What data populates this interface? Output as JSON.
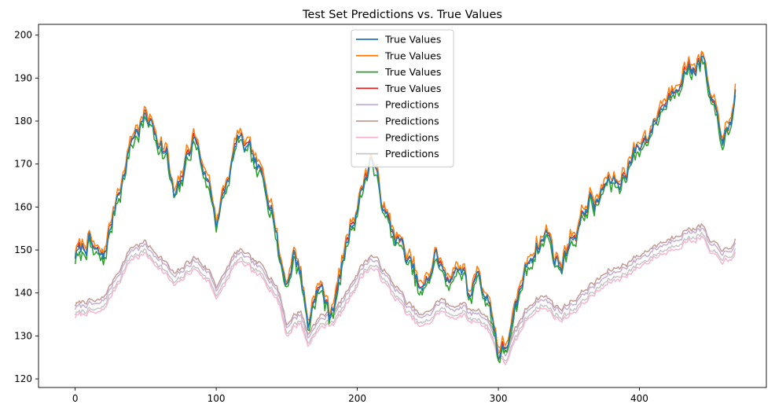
{
  "chart_data": {
    "type": "line",
    "title": "Test Set Predictions vs. True Values",
    "xlabel": "",
    "ylabel": "",
    "xlim": [
      -26,
      490
    ],
    "ylim": [
      118,
      202.5
    ],
    "xticks": [
      0,
      100,
      200,
      300,
      400
    ],
    "yticks": [
      120,
      130,
      140,
      150,
      160,
      170,
      180,
      190,
      200
    ],
    "grid": false,
    "legend_position": "top-center",
    "anchors_x": [
      0,
      5,
      10,
      15,
      20,
      25,
      30,
      35,
      40,
      45,
      50,
      55,
      60,
      65,
      70,
      75,
      80,
      85,
      90,
      95,
      100,
      105,
      110,
      115,
      120,
      125,
      130,
      135,
      140,
      145,
      150,
      155,
      160,
      165,
      170,
      175,
      180,
      185,
      190,
      195,
      200,
      205,
      210,
      215,
      220,
      225,
      230,
      235,
      240,
      245,
      250,
      255,
      260,
      265,
      270,
      275,
      280,
      285,
      290,
      295,
      300,
      305,
      310,
      315,
      320,
      325,
      330,
      335,
      340,
      345,
      350,
      355,
      360,
      365,
      370,
      375,
      380,
      385,
      390,
      395,
      400,
      405,
      410,
      415,
      420,
      425,
      430,
      435,
      440,
      445,
      450,
      455,
      460,
      465,
      468
    ],
    "series": [
      {
        "name": "True Values",
        "color": "#1f77b4",
        "offset": 0,
        "noise": 0.5,
        "seed": 11,
        "values": [
          149,
          150,
          152,
          149,
          148,
          155,
          163,
          168,
          176,
          178,
          181,
          179,
          175,
          172,
          162,
          165,
          173,
          176,
          170,
          165,
          157,
          162,
          168,
          176,
          174,
          172,
          168,
          165,
          160,
          148,
          142,
          149,
          145,
          132,
          140,
          141,
          135,
          139,
          148,
          155,
          160,
          166,
          172,
          165,
          158,
          154,
          152,
          148,
          145,
          140,
          142,
          149,
          146,
          141,
          147,
          145,
          138,
          146,
          140,
          136,
          126,
          127,
          132,
          140,
          146,
          150,
          152,
          154,
          148,
          146,
          152,
          154,
          158,
          162,
          160,
          165,
          166,
          165,
          168,
          172,
          174,
          176,
          179,
          183,
          185,
          188,
          191,
          192,
          193,
          195,
          185,
          180,
          176,
          178,
          188
        ]
      },
      {
        "name": "True Values",
        "color": "#ff7f0e",
        "offset": 1.2,
        "noise": 0.7,
        "seed": 23,
        "values": [
          149,
          150,
          152,
          149,
          148,
          155,
          163,
          168,
          176,
          178,
          181,
          179,
          175,
          172,
          162,
          165,
          173,
          176,
          170,
          165,
          157,
          162,
          168,
          176,
          174,
          172,
          168,
          165,
          160,
          148,
          142,
          149,
          145,
          132,
          140,
          141,
          135,
          139,
          148,
          155,
          160,
          166,
          172,
          165,
          158,
          154,
          152,
          148,
          145,
          140,
          142,
          149,
          146,
          141,
          147,
          145,
          138,
          146,
          140,
          136,
          126,
          127,
          132,
          140,
          146,
          150,
          152,
          154,
          148,
          146,
          152,
          154,
          158,
          162,
          160,
          165,
          166,
          165,
          168,
          172,
          174,
          176,
          179,
          183,
          185,
          188,
          191,
          192,
          193,
          195,
          185,
          180,
          176,
          178,
          188
        ]
      },
      {
        "name": "True Values",
        "color": "#2ca02c",
        "offset": -1.0,
        "noise": 0.9,
        "seed": 37,
        "values": [
          149,
          150,
          152,
          149,
          148,
          155,
          163,
          168,
          176,
          178,
          181,
          179,
          175,
          172,
          162,
          165,
          173,
          176,
          170,
          165,
          157,
          162,
          168,
          176,
          174,
          172,
          168,
          165,
          160,
          148,
          142,
          149,
          145,
          132,
          140,
          141,
          135,
          139,
          148,
          155,
          160,
          166,
          172,
          165,
          158,
          154,
          152,
          148,
          145,
          140,
          142,
          149,
          146,
          141,
          147,
          145,
          138,
          146,
          140,
          136,
          126,
          127,
          132,
          140,
          146,
          150,
          152,
          154,
          148,
          146,
          152,
          154,
          158,
          162,
          160,
          165,
          166,
          165,
          168,
          172,
          174,
          176,
          179,
          183,
          185,
          188,
          191,
          192,
          193,
          195,
          185,
          180,
          176,
          178,
          188
        ]
      },
      {
        "name": "True Values",
        "color": "#d62728",
        "offset": 0.3,
        "noise": 0.6,
        "seed": 51,
        "values": [
          149,
          150,
          152,
          149,
          148,
          155,
          163,
          168,
          176,
          178,
          181,
          179,
          175,
          172,
          162,
          165,
          173,
          176,
          170,
          165,
          157,
          162,
          168,
          176,
          174,
          172,
          168,
          165,
          160,
          148,
          142,
          149,
          145,
          132,
          140,
          141,
          135,
          139,
          148,
          155,
          160,
          166,
          172,
          165,
          158,
          154,
          152,
          148,
          145,
          140,
          142,
          149,
          146,
          141,
          147,
          145,
          138,
          146,
          140,
          136,
          126,
          127,
          132,
          140,
          146,
          150,
          152,
          154,
          148,
          146,
          152,
          154,
          158,
          162,
          160,
          165,
          166,
          165,
          168,
          172,
          174,
          176,
          179,
          183,
          185,
          188,
          191,
          192,
          193,
          195,
          185,
          180,
          176,
          178,
          188
        ]
      },
      {
        "name": "Predictions",
        "color": "#c5b0d5",
        "offset": 1.0,
        "noise": 0.2,
        "seed": 61,
        "values": [
          135.5,
          136,
          136.5,
          136,
          137,
          140,
          143,
          146,
          149,
          149.5,
          150,
          148,
          147,
          145,
          142.5,
          143.5,
          145.5,
          146.5,
          145,
          143.5,
          140,
          142,
          145.5,
          148,
          147.5,
          146,
          145,
          143.5,
          141.5,
          138,
          131,
          133,
          134,
          128.5,
          131.5,
          133,
          133.5,
          134.5,
          137,
          140,
          143,
          145.5,
          147,
          145.5,
          143,
          140.5,
          139,
          136,
          134.5,
          133,
          133.5,
          135.5,
          137,
          135,
          135.5,
          136,
          134,
          134.5,
          133.5,
          131,
          126,
          124.5,
          128,
          131.5,
          134.5,
          136.5,
          137.5,
          137,
          135.5,
          134.5,
          136,
          137,
          138.5,
          140,
          141,
          142.5,
          143.5,
          144,
          145,
          146,
          147,
          148,
          149,
          150,
          150.5,
          151.5,
          152.5,
          153,
          153.5,
          154,
          150,
          149,
          148.5,
          148,
          151
        ]
      },
      {
        "name": "Predictions",
        "color": "#c49c94",
        "offset": 1.8,
        "noise": 0.2,
        "seed": 71,
        "values": [
          135.5,
          136,
          136.5,
          136,
          137,
          140,
          143,
          146,
          149,
          149.5,
          150,
          148,
          147,
          145,
          142.5,
          143.5,
          145.5,
          146.5,
          145,
          143.5,
          140,
          142,
          145.5,
          148,
          147.5,
          146,
          145,
          143.5,
          141.5,
          138,
          131,
          133,
          134,
          128.5,
          131.5,
          133,
          133.5,
          134.5,
          137,
          140,
          143,
          145.5,
          147,
          145.5,
          143,
          140.5,
          139,
          136,
          134.5,
          133,
          133.5,
          135.5,
          137,
          135,
          135.5,
          136,
          134,
          134.5,
          133.5,
          131,
          126,
          124.5,
          128,
          131.5,
          134.5,
          136.5,
          137.5,
          137,
          135.5,
          134.5,
          136,
          137,
          138.5,
          140,
          141,
          142.5,
          143.5,
          144,
          145,
          146,
          147,
          148,
          149,
          150,
          150.5,
          151.5,
          152.5,
          153,
          153.5,
          154,
          150,
          149,
          148.5,
          148,
          151
        ]
      },
      {
        "name": "Predictions",
        "color": "#f7b6d2",
        "offset": -1.0,
        "noise": 0.2,
        "seed": 81,
        "values": [
          135.5,
          136,
          136.5,
          136,
          137,
          140,
          143,
          146,
          149,
          149.5,
          150,
          148,
          147,
          145,
          142.5,
          143.5,
          145.5,
          146.5,
          145,
          143.5,
          140,
          142,
          145.5,
          148,
          147.5,
          146,
          145,
          143.5,
          141.5,
          138,
          131,
          133,
          134,
          128.5,
          131.5,
          133,
          133.5,
          134.5,
          137,
          140,
          143,
          145.5,
          147,
          145.5,
          143,
          140.5,
          139,
          136,
          134.5,
          133,
          133.5,
          135.5,
          137,
          135,
          135.5,
          136,
          134,
          134.5,
          133.5,
          131,
          126,
          124.5,
          128,
          131.5,
          134.5,
          136.5,
          137.5,
          137,
          135.5,
          134.5,
          136,
          137,
          138.5,
          140,
          141,
          142.5,
          143.5,
          144,
          145,
          146,
          147,
          148,
          149,
          150,
          150.5,
          151.5,
          152.5,
          153,
          153.5,
          154,
          150,
          149,
          148.5,
          148,
          151
        ]
      },
      {
        "name": "Predictions",
        "color": "#c7c7c7",
        "offset": -0.3,
        "noise": 0.2,
        "seed": 91,
        "values": [
          135.5,
          136,
          136.5,
          136,
          137,
          140,
          143,
          146,
          149,
          149.5,
          150,
          148,
          147,
          145,
          142.5,
          143.5,
          145.5,
          146.5,
          145,
          143.5,
          140,
          142,
          145.5,
          148,
          147.5,
          146,
          145,
          143.5,
          141.5,
          138,
          131,
          133,
          134,
          128.5,
          131.5,
          133,
          133.5,
          134.5,
          137,
          140,
          143,
          145.5,
          147,
          145.5,
          143,
          140.5,
          139,
          136,
          134.5,
          133,
          133.5,
          135.5,
          137,
          135,
          135.5,
          136,
          134,
          134.5,
          133.5,
          131,
          126,
          124.5,
          128,
          131.5,
          134.5,
          136.5,
          137.5,
          137,
          135.5,
          134.5,
          136,
          137,
          138.5,
          140,
          141,
          142.5,
          143.5,
          144,
          145,
          146,
          147,
          148,
          149,
          150,
          150.5,
          151.5,
          152.5,
          153,
          153.5,
          154,
          150,
          149,
          148.5,
          148,
          151
        ]
      }
    ]
  }
}
